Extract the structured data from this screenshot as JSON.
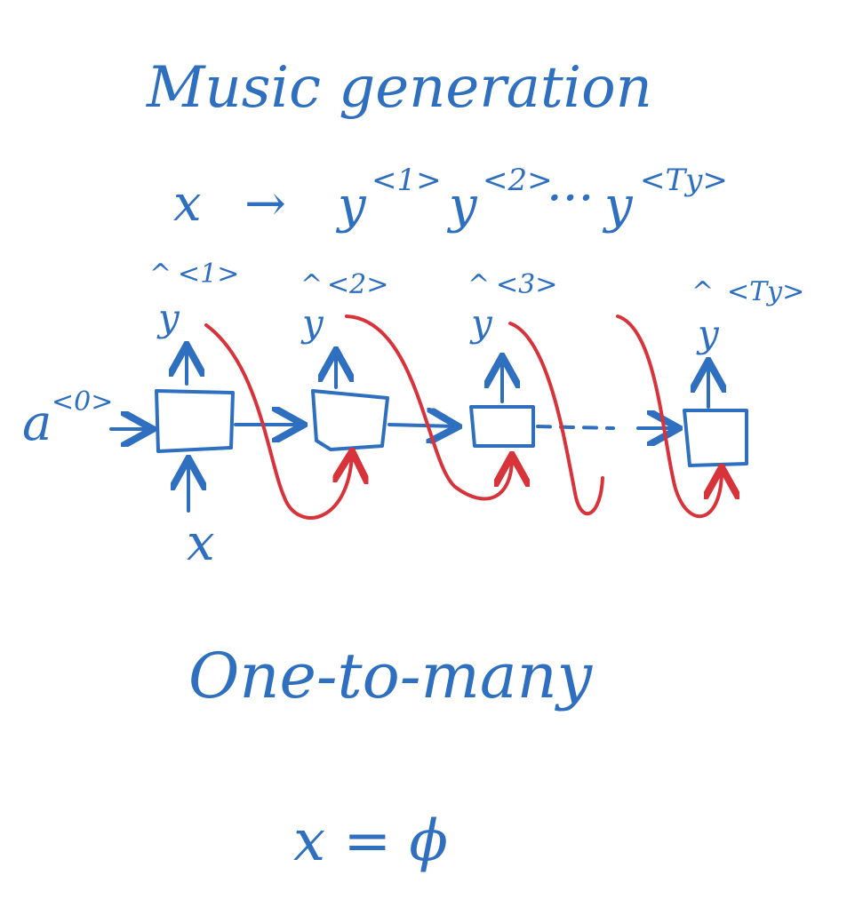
{
  "title": "Music generation",
  "sequence": {
    "input": "x",
    "arrow": "→",
    "outputs": [
      {
        "base": "y",
        "sup": "<1>"
      },
      {
        "base": "y",
        "sup": "<2>"
      },
      {
        "base": "y",
        "sup": "<Ty>"
      }
    ],
    "ellipsis": "···"
  },
  "rnn": {
    "initial_activation": {
      "base": "a",
      "sup": "<0>"
    },
    "input_label": "x",
    "outputs": [
      {
        "hat": "^",
        "base": "y",
        "sup": "<1>"
      },
      {
        "hat": "^",
        "base": "y",
        "sup": "<2>"
      },
      {
        "hat": "^",
        "base": "y",
        "sup": "<3>"
      },
      {
        "hat": "^",
        "base": "y",
        "sup": "<Ty>"
      }
    ]
  },
  "subtitle": "One-to-many",
  "equation": "x = ϕ",
  "colors": {
    "ink_blue": "#2f6fc0",
    "ink_red": "#d8323a",
    "background": "#ffffff"
  }
}
